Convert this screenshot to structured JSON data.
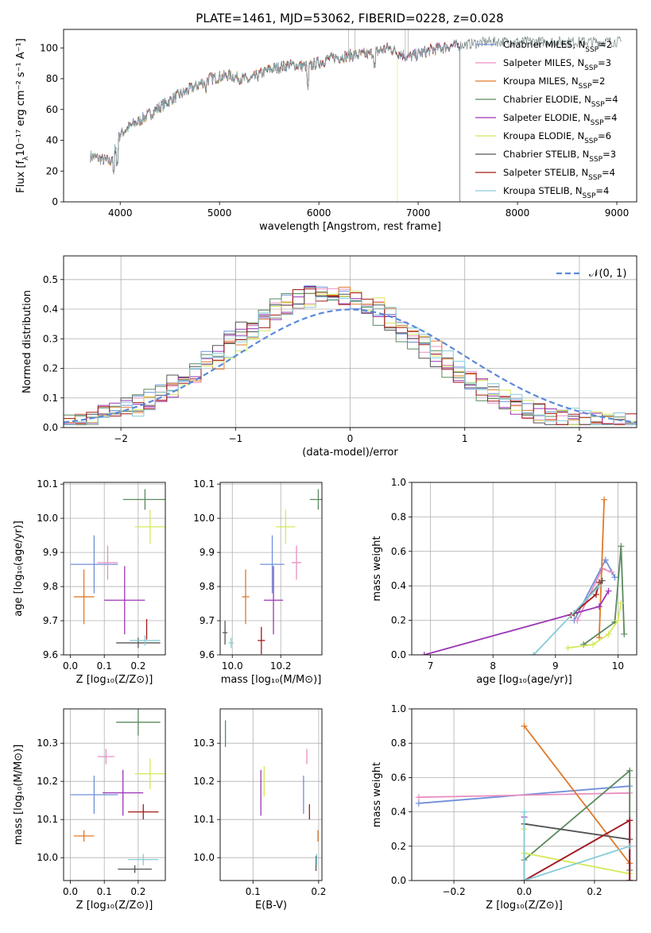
{
  "colors": {
    "chabrier_miles": "#6f8fd8",
    "salpeter_miles": "#e98fc2",
    "kroupa_miles": "#e07a2a",
    "chabrier_elodie": "#5a8a5e",
    "salpeter_elodie": "#9b35b5",
    "kroupa_elodie": "#d6e85a",
    "chabrier_stelib": "#555555",
    "salpeter_stelib": "#a51a1a",
    "kroupa_stelib": "#86ccd8",
    "normal_curve": "#5b8ad8"
  },
  "chart_data": [
    {
      "id": "spectrum",
      "type": "line",
      "title": "PLATE=1461, MJD=53062, FIBERID=0228, z=0.028",
      "xlabel": "wavelength [Angstrom, rest frame]",
      "ylabel": "Flux [fλ10⁻¹⁷ erg cm⁻² s⁻¹ A⁻¹]",
      "xlim": [
        3430,
        9200
      ],
      "ylim": [
        0,
        112
      ],
      "xticks": [
        "4000",
        "5000",
        "6000",
        "7000",
        "8000",
        "9000"
      ],
      "yticks": [
        "0",
        "20",
        "40",
        "60",
        "80",
        "100"
      ],
      "grid": false,
      "legend_position": "top-right",
      "legend": [
        {
          "name": "Chabrier MILES",
          "n": "2",
          "color_key": "chabrier_miles"
        },
        {
          "name": "Salpeter MILES",
          "n": "3",
          "color_key": "salpeter_miles"
        },
        {
          "name": "Kroupa MILES",
          "n": "2",
          "color_key": "kroupa_miles"
        },
        {
          "name": "Chabrier ELODIE",
          "n": "4",
          "color_key": "chabrier_elodie"
        },
        {
          "name": "Salpeter ELODIE",
          "n": "4",
          "color_key": "salpeter_elodie"
        },
        {
          "name": "Kroupa ELODIE",
          "n": "6",
          "color_key": "kroupa_elodie"
        },
        {
          "name": "Chabrier STELIB",
          "n": "3",
          "color_key": "chabrier_stelib"
        },
        {
          "name": "Salpeter STELIB",
          "n": "4",
          "color_key": "salpeter_stelib"
        },
        {
          "name": "Kroupa STELIB",
          "n": "4",
          "color_key": "kroupa_stelib"
        }
      ],
      "continuum": {
        "x": [
          3700,
          3900,
          4000,
          4100,
          4300,
          4500,
          4700,
          4900,
          5100,
          5300,
          5500,
          5700,
          5900,
          6100,
          6300,
          6500,
          6700,
          6900,
          7100,
          7300,
          7450,
          7700,
          8000,
          8500,
          9000
        ],
        "y": [
          30,
          26,
          44,
          49,
          57,
          66,
          73,
          80,
          82,
          79,
          86,
          89,
          88,
          93,
          95,
          96,
          100,
          94,
          98,
          101,
          102,
          104,
          104,
          104,
          104
        ]
      },
      "model_end_wavelength": 7420,
      "data_end_wavelength": 9050
    },
    {
      "id": "residual-histogram",
      "type": "area",
      "xlabel": "(data-model)/error",
      "ylabel": "Normed distribution",
      "xlim": [
        -2.5,
        2.5
      ],
      "ylim": [
        0,
        0.58
      ],
      "xticks": [
        "−2",
        "−1",
        "0",
        "1",
        "2"
      ],
      "yticks": [
        "0.0",
        "0.1",
        "0.2",
        "0.3",
        "0.4",
        "0.5"
      ],
      "grid": true,
      "legend_position": "top-right",
      "curve_label": "𝒩(0, 1)",
      "bin_width": 0.1
    },
    {
      "id": "age-vs-Z",
      "type": "scatter",
      "xlabel": "Z [log₁₀(Z/Z⊙)]",
      "ylabel": "age  [log₁₀(age/yr)]",
      "xlim": [
        -0.02,
        0.28
      ],
      "ylim": [
        9.6,
        10.105
      ],
      "xticks": [
        "0.0",
        "0.1",
        "0.2"
      ],
      "yticks": [
        "9.6",
        "9.7",
        "9.8",
        "9.9",
        "10.0",
        "10.1"
      ],
      "grid": true,
      "points": [
        {
          "model": "chabrier_miles",
          "x": 0.07,
          "xerr": 0.07,
          "y": 9.865,
          "yerr": 0.085
        },
        {
          "model": "salpeter_miles",
          "x": 0.11,
          "xerr": 0.03,
          "y": 9.87,
          "yerr": 0.05
        },
        {
          "model": "kroupa_miles",
          "x": 0.04,
          "xerr": 0.03,
          "y": 9.77,
          "yerr": 0.08
        },
        {
          "model": "chabrier_elodie",
          "x": 0.22,
          "xerr": 0.065,
          "y": 10.055,
          "yerr": 0.03
        },
        {
          "model": "salpeter_elodie",
          "x": 0.16,
          "xerr": 0.06,
          "y": 9.76,
          "yerr": 0.1
        },
        {
          "model": "kroupa_elodie",
          "x": 0.235,
          "xerr": 0.045,
          "y": 9.975,
          "yerr": 0.05
        },
        {
          "model": "chabrier_stelib",
          "x": 0.2,
          "xerr": 0.065,
          "y": 9.635,
          "yerr": 0.015
        },
        {
          "model": "salpeter_stelib",
          "x": 0.225,
          "xerr": 0.0,
          "y": 9.675,
          "yerr": 0.03
        },
        {
          "model": "kroupa_stelib",
          "x": 0.22,
          "xerr": 0.045,
          "y": 9.642,
          "yerr": 0.015
        }
      ]
    },
    {
      "id": "age-vs-mass",
      "type": "scatter",
      "xlabel": "mass [log₁₀(M/M⊙)]",
      "xlim": [
        9.95,
        10.37
      ],
      "ylim": [
        9.6,
        10.105
      ],
      "xticks": [
        "10.0",
        "10.2"
      ],
      "yticks": [
        "9.6",
        "9.7",
        "9.8",
        "9.9",
        "10.0",
        "10.1"
      ],
      "grid": true,
      "points": [
        {
          "model": "chabrier_miles",
          "x": 10.165,
          "xerr": 0.05,
          "y": 9.865,
          "yerr": 0.085
        },
        {
          "model": "salpeter_miles",
          "x": 10.265,
          "xerr": 0.02,
          "y": 9.87,
          "yerr": 0.05
        },
        {
          "model": "kroupa_miles",
          "x": 10.055,
          "xerr": 0.015,
          "y": 9.77,
          "yerr": 0.08
        },
        {
          "model": "chabrier_elodie",
          "x": 10.355,
          "xerr": 0.035,
          "y": 10.055,
          "yerr": 0.03
        },
        {
          "model": "salpeter_elodie",
          "x": 10.17,
          "xerr": 0.04,
          "y": 9.76,
          "yerr": 0.1
        },
        {
          "model": "kroupa_elodie",
          "x": 10.22,
          "xerr": 0.04,
          "y": 9.975,
          "yerr": 0.05
        },
        {
          "model": "chabrier_stelib",
          "x": 9.97,
          "xerr": 0.01,
          "y": 9.665,
          "yerr": 0.035
        },
        {
          "model": "salpeter_stelib",
          "x": 10.12,
          "xerr": 0.015,
          "y": 9.642,
          "yerr": 0.04
        },
        {
          "model": "kroupa_stelib",
          "x": 9.995,
          "xerr": 0.01,
          "y": 9.635,
          "yerr": 0.015
        }
      ]
    },
    {
      "id": "weight-vs-age",
      "type": "line",
      "xlabel": "age  [log₁₀(age/yr)]",
      "ylabel": "mass weight",
      "xlim": [
        6.7,
        10.3
      ],
      "ylim": [
        0,
        1
      ],
      "xticks": [
        "7",
        "8",
        "9",
        "10"
      ],
      "yticks": [
        "0.0",
        "0.2",
        "0.4",
        "0.6",
        "0.8",
        "1.0"
      ],
      "grid": true,
      "series": [
        {
          "model": "chabrier_miles",
          "x": [
            9.3,
            9.8,
            9.95
          ],
          "y": [
            0.2,
            0.55,
            0.45
          ]
        },
        {
          "model": "salpeter_miles",
          "x": [
            9.35,
            9.75,
            9.9
          ],
          "y": [
            0.2,
            0.5,
            0.48
          ]
        },
        {
          "model": "kroupa_miles",
          "x": [
            9.7,
            9.78
          ],
          "y": [
            0.1,
            0.9
          ]
        },
        {
          "model": "chabrier_elodie",
          "x": [
            9.45,
            9.95,
            10.05,
            10.1
          ],
          "y": [
            0.06,
            0.19,
            0.63,
            0.12
          ]
        },
        {
          "model": "salpeter_elodie",
          "x": [
            6.9,
            9.7,
            9.85
          ],
          "y": [
            0.0,
            0.28,
            0.37
          ]
        },
        {
          "model": "kroupa_elodie",
          "x": [
            9.2,
            9.6,
            9.85,
            10.0,
            10.05
          ],
          "y": [
            0.04,
            0.06,
            0.12,
            0.2,
            0.3
          ]
        },
        {
          "model": "chabrier_stelib",
          "x": [
            9.3,
            9.75
          ],
          "y": [
            0.24,
            0.43
          ]
        },
        {
          "model": "salpeter_stelib",
          "x": [
            9.25,
            9.65,
            9.7
          ],
          "y": [
            0.23,
            0.35,
            0.42
          ]
        },
        {
          "model": "kroupa_stelib",
          "x": [
            8.65,
            9.7
          ],
          "y": [
            0.0,
            0.4
          ]
        }
      ]
    },
    {
      "id": "mass-vs-Z",
      "type": "scatter",
      "xlabel": "Z [log₁₀(Z/Z⊙)]",
      "ylabel": "mass [log₁₀(M/M⊙)]",
      "xlim": [
        -0.02,
        0.28
      ],
      "ylim": [
        9.94,
        10.39
      ],
      "xticks": [
        "0.0",
        "0.1",
        "0.2"
      ],
      "yticks": [
        "10.0",
        "10.1",
        "10.2",
        "10.3"
      ],
      "grid": true,
      "points": [
        {
          "model": "chabrier_miles",
          "x": 0.07,
          "xerr": 0.07,
          "y": 10.165,
          "yerr": 0.05
        },
        {
          "model": "salpeter_miles",
          "x": 0.105,
          "xerr": 0.025,
          "y": 10.265,
          "yerr": 0.02
        },
        {
          "model": "kroupa_miles",
          "x": 0.04,
          "xerr": 0.03,
          "y": 10.057,
          "yerr": 0.015
        },
        {
          "model": "chabrier_elodie",
          "x": 0.2,
          "xerr": 0.065,
          "y": 10.355,
          "yerr": 0.035
        },
        {
          "model": "salpeter_elodie",
          "x": 0.155,
          "xerr": 0.06,
          "y": 10.17,
          "yerr": 0.06
        },
        {
          "model": "kroupa_elodie",
          "x": 0.235,
          "xerr": 0.045,
          "y": 10.22,
          "yerr": 0.04
        },
        {
          "model": "chabrier_stelib",
          "x": 0.19,
          "xerr": 0.05,
          "y": 9.97,
          "yerr": 0.01
        },
        {
          "model": "salpeter_stelib",
          "x": 0.215,
          "xerr": 0.045,
          "y": 10.12,
          "yerr": 0.02
        },
        {
          "model": "kroupa_stelib",
          "x": 0.215,
          "xerr": 0.045,
          "y": 9.995,
          "yerr": 0.015
        }
      ]
    },
    {
      "id": "mass-vs-ebv",
      "type": "scatter",
      "xlabel": "E(B-V)",
      "xlim": [
        0.05,
        0.205
      ],
      "ylim": [
        9.94,
        10.39
      ],
      "xticks": [
        "0.1",
        "0.2"
      ],
      "yticks": [
        "10.0",
        "10.1",
        "10.2",
        "10.3"
      ],
      "grid": true,
      "points": [
        {
          "model": "chabrier_miles",
          "x": 0.177,
          "xerr": 0,
          "y": 10.165,
          "yerr": 0.05
        },
        {
          "model": "salpeter_miles",
          "x": 0.182,
          "xerr": 0,
          "y": 10.265,
          "yerr": 0.02
        },
        {
          "model": "kroupa_miles",
          "x": 0.199,
          "xerr": 0,
          "y": 10.057,
          "yerr": 0.015
        },
        {
          "model": "chabrier_elodie",
          "x": 0.058,
          "xerr": 0,
          "y": 10.325,
          "yerr": 0.035
        },
        {
          "model": "salpeter_elodie",
          "x": 0.112,
          "xerr": 0,
          "y": 10.17,
          "yerr": 0.06
        },
        {
          "model": "kroupa_elodie",
          "x": 0.117,
          "xerr": 0,
          "y": 10.2,
          "yerr": 0.04
        },
        {
          "model": "chabrier_stelib",
          "x": 0.196,
          "xerr": 0,
          "y": 9.985,
          "yerr": 0.02
        },
        {
          "model": "salpeter_stelib",
          "x": 0.186,
          "xerr": 0,
          "y": 10.12,
          "yerr": 0.02
        },
        {
          "model": "kroupa_stelib",
          "x": 0.197,
          "xerr": 0,
          "y": 9.995,
          "yerr": 0.015
        }
      ]
    },
    {
      "id": "weight-vs-Z",
      "type": "line",
      "xlabel": "Z [log₁₀(Z/Z⊙)]",
      "ylabel": "mass weight",
      "xlim": [
        -0.32,
        0.32
      ],
      "ylim": [
        0,
        1
      ],
      "xticks": [
        "−0.2",
        "0.0",
        "0.2"
      ],
      "yticks": [
        "0.0",
        "0.2",
        "0.4",
        "0.6",
        "0.8",
        "1.0"
      ],
      "grid": true,
      "series": [
        {
          "model": "chabrier_miles",
          "x": [
            -0.3,
            0.3
          ],
          "y": [
            0.45,
            0.55
          ]
        },
        {
          "model": "salpeter_miles",
          "x": [
            -0.3,
            0.3,
            0.3
          ],
          "y": [
            0.485,
            0.51,
            0.0
          ]
        },
        {
          "model": "kroupa_miles",
          "x": [
            0.0,
            0.3
          ],
          "y": [
            0.9,
            0.1
          ]
        },
        {
          "model": "chabrier_elodie",
          "x": [
            0.0,
            0.0,
            0.3,
            0.3
          ],
          "y": [
            0.0,
            0.12,
            0.64,
            0.06
          ]
        },
        {
          "model": "salpeter_elodie",
          "x": [
            0.0,
            0.0,
            0.3,
            0.3
          ],
          "y": [
            0.37,
            0.0,
            0.35,
            0.0
          ]
        },
        {
          "model": "kroupa_elodie",
          "x": [
            0.0,
            0.0,
            0.3
          ],
          "y": [
            0.3,
            0.16,
            0.04
          ]
        },
        {
          "model": "chabrier_stelib",
          "x": [
            0.0,
            0.3,
            0.3
          ],
          "y": [
            0.33,
            0.24,
            0.0
          ]
        },
        {
          "model": "salpeter_stelib",
          "x": [
            0.0,
            0.3,
            0.3
          ],
          "y": [
            0.0,
            0.35,
            0.0
          ]
        },
        {
          "model": "kroupa_stelib",
          "x": [
            0.0,
            0.0,
            0.3
          ],
          "y": [
            0.4,
            0.0,
            0.2
          ]
        }
      ]
    }
  ]
}
